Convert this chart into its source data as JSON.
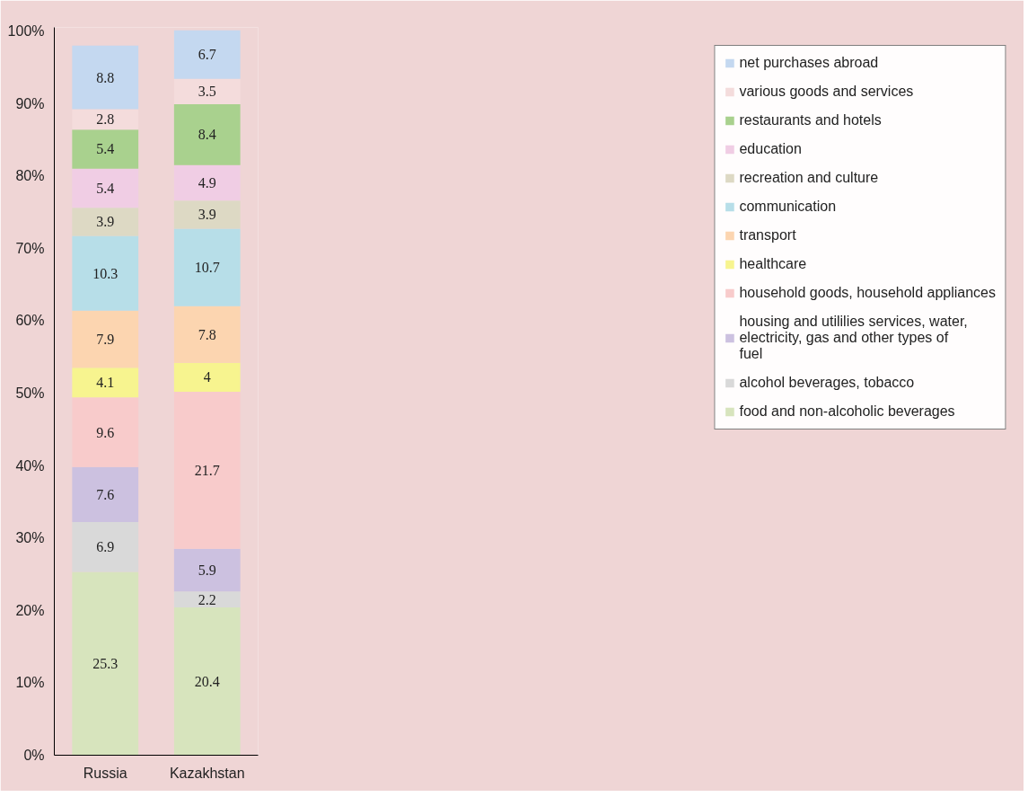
{
  "chart_data": {
    "type": "bar",
    "stacked": true,
    "categories": [
      "Russia",
      "Kazakhstan"
    ],
    "series": [
      {
        "name": "food and non-alcoholic beverages",
        "color": "#d7e4bd",
        "values": [
          25.3,
          20.4
        ]
      },
      {
        "name": "alcohol beverages, tobacco",
        "color": "#d9d9d9",
        "values": [
          6.9,
          2.2
        ]
      },
      {
        "name": "housing and utililies services, water, electricity, gas and other types of fuel",
        "color": "#ccc1e0",
        "values": [
          7.6,
          5.9
        ]
      },
      {
        "name": "household goods, household appliances",
        "color": "#f8cbcb",
        "values": [
          9.6,
          21.7
        ]
      },
      {
        "name": "healthcare",
        "color": "#f7f48f",
        "values": [
          4.1,
          4
        ]
      },
      {
        "name": "transport",
        "color": "#fcd5b0",
        "values": [
          7.9,
          7.8
        ]
      },
      {
        "name": "communication",
        "color": "#b7dee8",
        "values": [
          10.3,
          10.7
        ]
      },
      {
        "name": "recreation and culture",
        "color": "#ddd9c4",
        "values": [
          3.9,
          3.9
        ]
      },
      {
        "name": "education",
        "color": "#f0cde4",
        "values": [
          5.4,
          4.9
        ]
      },
      {
        "name": "restaurants and hotels",
        "color": "#a9d18e",
        "values": [
          5.4,
          8.4
        ]
      },
      {
        "name": "various goods and services",
        "color": "#f4dcdc",
        "values": [
          2.8,
          3.5
        ]
      },
      {
        "name": "net purchases abroad",
        "color": "#c4d8f0",
        "values": [
          8.8,
          6.7
        ]
      }
    ],
    "ylim": [
      0,
      100.5
    ],
    "yticks": [
      {
        "value": 0,
        "label": "0%"
      },
      {
        "value": 10,
        "label": "10%"
      },
      {
        "value": 20,
        "label": "20%"
      },
      {
        "value": 30,
        "label": "30%"
      },
      {
        "value": 40,
        "label": "40%"
      },
      {
        "value": 50,
        "label": "50%"
      },
      {
        "value": 60,
        "label": "60%"
      },
      {
        "value": 70,
        "label": "70%"
      },
      {
        "value": 80,
        "label": "80%"
      },
      {
        "value": 90,
        "label": "90%"
      },
      {
        "value": 100,
        "label": "100%"
      }
    ],
    "data_labels": true,
    "legend": "right",
    "grid": false
  }
}
